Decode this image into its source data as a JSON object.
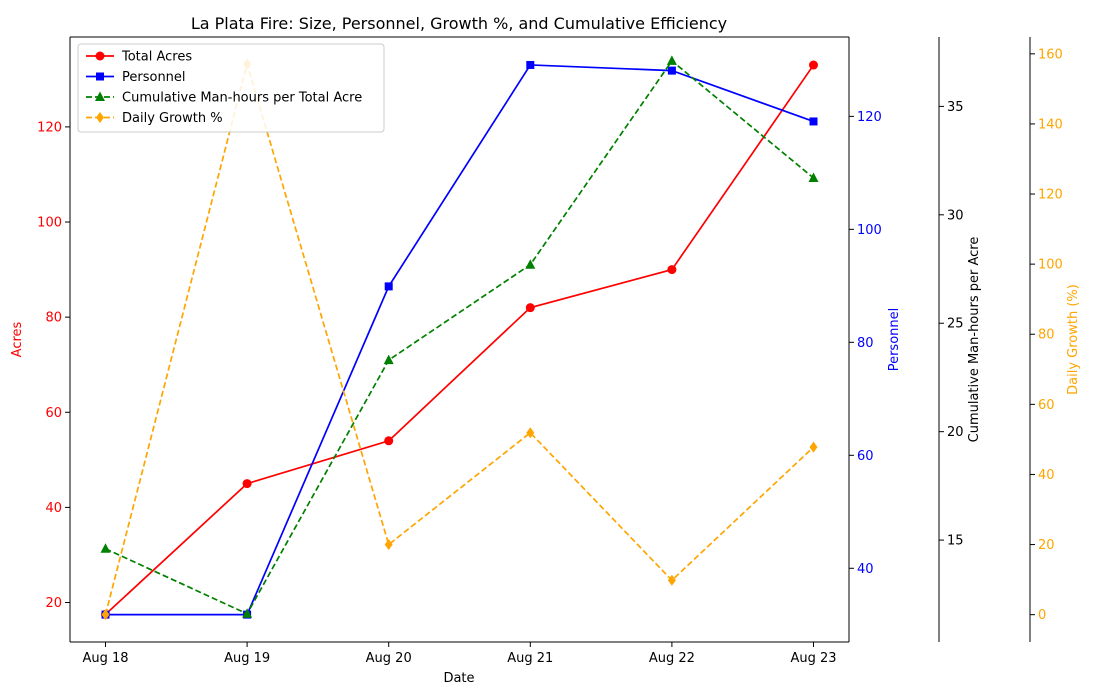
{
  "chart_data": {
    "type": "line",
    "title": "La Plata Fire: Size, Personnel, Growth %, and Cumulative Efficiency",
    "xlabel": "Date",
    "categories": [
      "Aug 18",
      "Aug 19",
      "Aug 20",
      "Aug 21",
      "Aug 22",
      "Aug 23"
    ],
    "grid": false,
    "legend_position": "top-left",
    "axes": [
      {
        "id": "acres",
        "side": "left",
        "label": "Acres",
        "color": "#ff0000",
        "ylim": [
          11.7,
          138.9
        ],
        "ticks": [
          20,
          40,
          60,
          80,
          100,
          120
        ]
      },
      {
        "id": "personnel",
        "side": "right",
        "label": "Personnel",
        "color": "#0000ff",
        "ylim": [
          26.95,
          134.05
        ],
        "ticks": [
          40,
          60,
          80,
          100,
          120
        ]
      },
      {
        "id": "efficiency",
        "side": "right",
        "label": "Cumulative Man-hours per Acre",
        "color": "#000000",
        "ylim": [
          10.3,
          38.2
        ],
        "ticks": [
          15,
          20,
          25,
          30,
          35
        ]
      },
      {
        "id": "growth",
        "side": "right",
        "label": "Daily Growth (%)",
        "color": "#ffa500",
        "ylim": [
          -7.8,
          164.8
        ],
        "ticks": [
          0,
          20,
          40,
          60,
          80,
          100,
          120,
          140,
          160
        ]
      }
    ],
    "series": [
      {
        "name": "Total Acres",
        "axis": "acres",
        "color": "#ff0000",
        "dashed": false,
        "marker": "circle",
        "values": [
          17.5,
          45,
          54,
          82,
          90,
          133
        ]
      },
      {
        "name": "Personnel",
        "axis": "personnel",
        "color": "#0000ff",
        "dashed": false,
        "marker": "square",
        "values": [
          31.8,
          31.8,
          89.9,
          129.1,
          128.1,
          119.1
        ]
      },
      {
        "name": "Cumulative Man-hours per Total Acre",
        "axis": "efficiency",
        "color": "#008000",
        "dashed": true,
        "marker": "triangle",
        "values": [
          14.6,
          11.6,
          23.3,
          27.7,
          37.1,
          31.7
        ]
      },
      {
        "name": "Daily Growth %",
        "axis": "growth",
        "color": "#ffa500",
        "dashed": true,
        "marker": "diamond",
        "values": [
          0,
          157.1,
          20.0,
          51.9,
          9.8,
          47.8
        ]
      }
    ]
  }
}
